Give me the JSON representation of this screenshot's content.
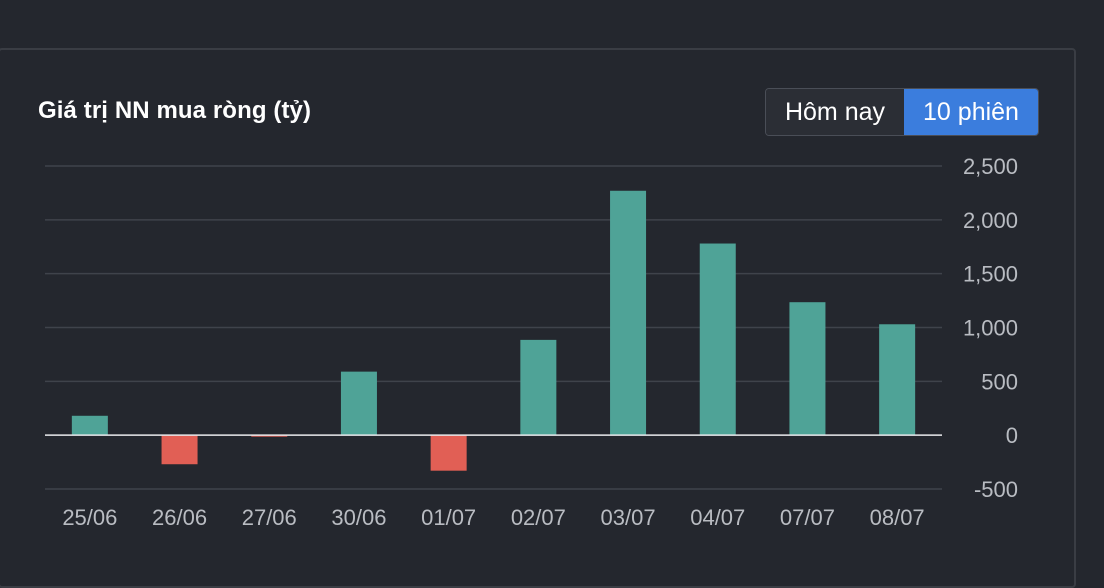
{
  "header": {
    "title": "Giá trị NN mua ròng (tỷ)",
    "toggle": {
      "today_label": "Hôm nay",
      "sessions_label": "10 phiên",
      "selected": "10 phiên"
    }
  },
  "colors": {
    "positive": "#4fa397",
    "negative": "#e15f55",
    "active_toggle": "#3b7ddd"
  },
  "chart_data": {
    "type": "bar",
    "title": "Giá trị NN mua ròng (tỷ)",
    "xlabel": "",
    "ylabel": "",
    "categories": [
      "25/06",
      "26/06",
      "27/06",
      "30/06",
      "01/07",
      "02/07",
      "03/07",
      "04/07",
      "07/07",
      "08/07"
    ],
    "values": [
      180,
      -270,
      -10,
      590,
      -330,
      885,
      2270,
      1780,
      1235,
      1030
    ],
    "ylim": [
      -500,
      2500
    ],
    "yticks": [
      -500,
      0,
      500,
      1000,
      1500,
      2000,
      2500
    ],
    "ytick_labels": [
      "-500",
      "0",
      "500",
      "1,000",
      "1,500",
      "2,000",
      "2,500"
    ],
    "grid": true,
    "y_axis_position": "right"
  }
}
